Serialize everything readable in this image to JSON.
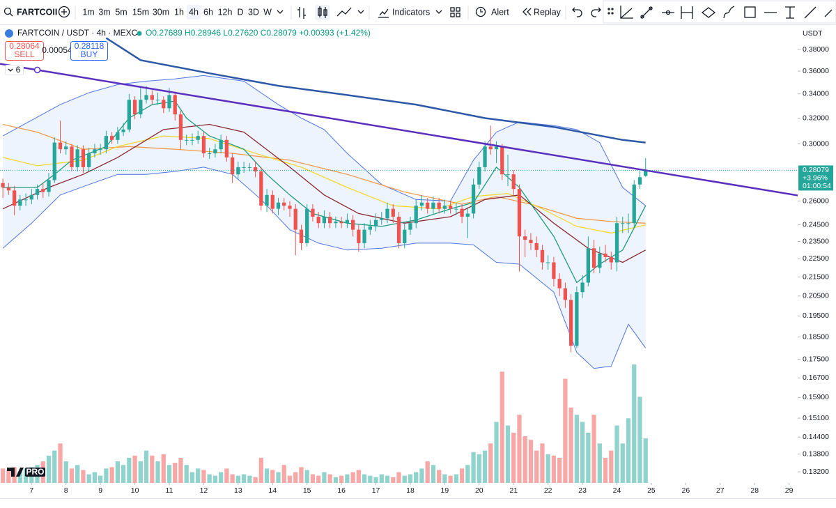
{
  "toolbar": {
    "symbol": "FARTCOII",
    "intervals": [
      "1m",
      "3m",
      "5m",
      "15m",
      "30m",
      "1h",
      "4h",
      "6h",
      "12h",
      "D",
      "3D",
      "W"
    ],
    "indicators": "Indicators",
    "alert": "Alert",
    "replay": "Replay"
  },
  "legend": {
    "pair": "FARTCOIN / USDT · 4h · MEXC",
    "ohlc": "O0.27689 H0.28946 L0.27620 C0.28079 +0.00393 (+1.42%)"
  },
  "trade": {
    "sell_price": "0.28064",
    "sell": "SELL",
    "spread": "0.00054",
    "buy_price": "0.28118",
    "buy": "BUY"
  },
  "indicator_count": "6",
  "currency": "USDT",
  "logo": "PRO",
  "last_price": {
    "price": "0.28079",
    "change": "+3.96%",
    "countdown": "01:00:54"
  },
  "chart_data": {
    "type": "candlestick",
    "log_scale": true,
    "grid": false,
    "up_color": "#26a69a",
    "down_color": "#ef5350",
    "volume_up_color": "#8fd3cc",
    "volume_down_color": "#f7a7a5",
    "xlim": [
      -0.5,
      138.5
    ],
    "xticks": [
      {
        "value": 5,
        "label": "7"
      },
      {
        "value": 11,
        "label": "8"
      },
      {
        "value": 17,
        "label": "9"
      },
      {
        "value": 23,
        "label": "10"
      },
      {
        "value": 29,
        "label": "11"
      },
      {
        "value": 35,
        "label": "12"
      },
      {
        "value": 41,
        "label": "13"
      },
      {
        "value": 47,
        "label": "14"
      },
      {
        "value": 53,
        "label": "15"
      },
      {
        "value": 59,
        "label": "16"
      },
      {
        "value": 65,
        "label": "17"
      },
      {
        "value": 71,
        "label": "18"
      },
      {
        "value": 77,
        "label": "19"
      },
      {
        "value": 83,
        "label": "20"
      },
      {
        "value": 89,
        "label": "21"
      },
      {
        "value": 95,
        "label": "22"
      },
      {
        "value": 101,
        "label": "23"
      },
      {
        "value": 107,
        "label": "24"
      },
      {
        "value": 113,
        "label": "25"
      },
      {
        "value": 119,
        "label": "26"
      },
      {
        "value": 125,
        "label": "27"
      },
      {
        "value": 131,
        "label": "28"
      },
      {
        "value": 137,
        "label": "29"
      }
    ],
    "ylim": [
      0.1284,
      0.4011
    ],
    "yticks": [
      {
        "value": 0.38,
        "label": "0.38000"
      },
      {
        "value": 0.36,
        "label": "0.36000"
      },
      {
        "value": 0.34,
        "label": "0.34000"
      },
      {
        "value": 0.32,
        "label": "0.32000"
      },
      {
        "value": 0.3,
        "label": "0.30000"
      },
      {
        "value": 0.26,
        "label": "0.26000"
      },
      {
        "value": 0.245,
        "label": "0.24500"
      },
      {
        "value": 0.235,
        "label": "0.23500"
      },
      {
        "value": 0.225,
        "label": "0.22500"
      },
      {
        "value": 0.215,
        "label": "0.21500"
      },
      {
        "value": 0.205,
        "label": "0.20500"
      },
      {
        "value": 0.195,
        "label": "0.19500"
      },
      {
        "value": 0.185,
        "label": "0.18500"
      },
      {
        "value": 0.175,
        "label": "0.17500"
      },
      {
        "value": 0.167,
        "label": "0.16700"
      },
      {
        "value": 0.159,
        "label": "0.15900"
      },
      {
        "value": 0.151,
        "label": "0.15100"
      },
      {
        "value": 0.144,
        "label": "0.14400"
      },
      {
        "value": 0.138,
        "label": "0.13800"
      },
      {
        "value": 0.132,
        "label": "0.13200"
      }
    ],
    "open": [
      0.272,
      0.269,
      0.267,
      0.257,
      0.261,
      0.261,
      0.264,
      0.268,
      0.266,
      0.274,
      0.301,
      0.296,
      0.298,
      0.283,
      0.296,
      0.283,
      0.293,
      0.296,
      0.296,
      0.306,
      0.303,
      0.309,
      0.311,
      0.335,
      0.323,
      0.335,
      0.339,
      0.335,
      0.335,
      0.328,
      0.339,
      0.323,
      0.303,
      0.303,
      0.303,
      0.306,
      0.293,
      0.293,
      0.296,
      0.303,
      0.29,
      0.278,
      0.283,
      0.283,
      0.283,
      0.28,
      0.257,
      0.264,
      0.255,
      0.259,
      0.257,
      0.255,
      0.242,
      0.234,
      0.255,
      0.25,
      0.246,
      0.25,
      0.246,
      0.247,
      0.246,
      0.248,
      0.242,
      0.234,
      0.242,
      0.244,
      0.248,
      0.249,
      0.255,
      0.25,
      0.234,
      0.242,
      0.246,
      0.257,
      0.259,
      0.255,
      0.259,
      0.255,
      0.257,
      0.255,
      0.255,
      0.25,
      0.252,
      0.271,
      0.283,
      0.298,
      0.296,
      0.298,
      0.278,
      0.278,
      0.268,
      0.238,
      0.236,
      0.234,
      0.23,
      0.223,
      0.223,
      0.214,
      0.209,
      0.203,
      0.181,
      0.207,
      0.212,
      0.231,
      0.22,
      0.228,
      0.226,
      0.223,
      0.246,
      0.246,
      0.246,
      0.271,
      0.27689
    ],
    "high": [
      0.275,
      0.272,
      0.27,
      0.264,
      0.265,
      0.268,
      0.271,
      0.272,
      0.279,
      0.305,
      0.318,
      0.302,
      0.3,
      0.299,
      0.299,
      0.297,
      0.3,
      0.3,
      0.31,
      0.309,
      0.313,
      0.316,
      0.34,
      0.338,
      0.345,
      0.347,
      0.343,
      0.341,
      0.338,
      0.345,
      0.342,
      0.326,
      0.307,
      0.308,
      0.31,
      0.309,
      0.297,
      0.3,
      0.307,
      0.306,
      0.293,
      0.287,
      0.287,
      0.286,
      0.287,
      0.283,
      0.268,
      0.267,
      0.262,
      0.262,
      0.26,
      0.258,
      0.245,
      0.258,
      0.258,
      0.253,
      0.254,
      0.253,
      0.25,
      0.25,
      0.252,
      0.251,
      0.245,
      0.246,
      0.248,
      0.252,
      0.253,
      0.259,
      0.258,
      0.253,
      0.246,
      0.25,
      0.261,
      0.264,
      0.262,
      0.263,
      0.262,
      0.261,
      0.26,
      0.259,
      0.258,
      0.256,
      0.275,
      0.287,
      0.302,
      0.314,
      0.302,
      0.3,
      0.292,
      0.281,
      0.271,
      0.242,
      0.24,
      0.238,
      0.233,
      0.227,
      0.226,
      0.217,
      0.212,
      0.206,
      0.21,
      0.216,
      0.238,
      0.236,
      0.232,
      0.233,
      0.229,
      0.25,
      0.25,
      0.252,
      0.274,
      0.281,
      0.28946
    ],
    "low": [
      0.262,
      0.264,
      0.251,
      0.254,
      0.257,
      0.258,
      0.261,
      0.262,
      0.263,
      0.272,
      0.293,
      0.292,
      0.28,
      0.28,
      0.279,
      0.28,
      0.29,
      0.292,
      0.293,
      0.3,
      0.3,
      0.306,
      0.309,
      0.319,
      0.32,
      0.332,
      0.331,
      0.331,
      0.324,
      0.325,
      0.318,
      0.296,
      0.299,
      0.299,
      0.3,
      0.29,
      0.289,
      0.29,
      0.293,
      0.287,
      0.272,
      0.275,
      0.279,
      0.28,
      0.276,
      0.254,
      0.253,
      0.252,
      0.251,
      0.254,
      0.25,
      0.227,
      0.23,
      0.232,
      0.247,
      0.243,
      0.243,
      0.243,
      0.243,
      0.243,
      0.243,
      0.238,
      0.229,
      0.231,
      0.239,
      0.241,
      0.245,
      0.246,
      0.246,
      0.231,
      0.231,
      0.239,
      0.243,
      0.254,
      0.252,
      0.252,
      0.252,
      0.252,
      0.252,
      0.251,
      0.246,
      0.237,
      0.249,
      0.268,
      0.28,
      0.292,
      0.286,
      0.274,
      0.27,
      0.264,
      0.218,
      0.226,
      0.23,
      0.226,
      0.219,
      0.219,
      0.21,
      0.205,
      0.199,
      0.178,
      0.18,
      0.204,
      0.21,
      0.217,
      0.217,
      0.223,
      0.219,
      0.218,
      0.24,
      0.24,
      0.243,
      0.268,
      0.2762
    ],
    "close": [
      0.269,
      0.267,
      0.257,
      0.261,
      0.261,
      0.264,
      0.268,
      0.266,
      0.274,
      0.301,
      0.296,
      0.298,
      0.283,
      0.296,
      0.283,
      0.293,
      0.296,
      0.296,
      0.306,
      0.303,
      0.309,
      0.311,
      0.335,
      0.323,
      0.335,
      0.339,
      0.335,
      0.335,
      0.328,
      0.339,
      0.323,
      0.303,
      0.303,
      0.303,
      0.306,
      0.293,
      0.293,
      0.296,
      0.303,
      0.29,
      0.278,
      0.283,
      0.283,
      0.283,
      0.28,
      0.257,
      0.264,
      0.255,
      0.259,
      0.257,
      0.255,
      0.242,
      0.234,
      0.255,
      0.25,
      0.246,
      0.25,
      0.246,
      0.247,
      0.246,
      0.248,
      0.242,
      0.234,
      0.242,
      0.244,
      0.248,
      0.249,
      0.255,
      0.25,
      0.234,
      0.242,
      0.246,
      0.257,
      0.259,
      0.255,
      0.259,
      0.255,
      0.257,
      0.255,
      0.255,
      0.25,
      0.252,
      0.271,
      0.283,
      0.298,
      0.296,
      0.298,
      0.278,
      0.278,
      0.268,
      0.238,
      0.236,
      0.234,
      0.23,
      0.223,
      0.223,
      0.214,
      0.209,
      0.203,
      0.181,
      0.207,
      0.212,
      0.231,
      0.22,
      0.228,
      0.226,
      0.223,
      0.246,
      0.246,
      0.246,
      0.271,
      0.276,
      0.28079
    ],
    "volume": [
      20,
      18,
      22,
      15,
      20,
      22,
      25,
      30,
      38,
      45,
      55,
      30,
      20,
      25,
      18,
      12,
      15,
      10,
      20,
      22,
      30,
      25,
      35,
      38,
      30,
      45,
      38,
      30,
      40,
      25,
      28,
      35,
      25,
      15,
      20,
      18,
      12,
      10,
      15,
      20,
      12,
      10,
      12,
      10,
      8,
      35,
      20,
      18,
      15,
      25,
      10,
      15,
      22,
      18,
      12,
      10,
      15,
      12,
      8,
      10,
      12,
      15,
      18,
      12,
      10,
      8,
      12,
      10,
      8,
      15,
      10,
      12,
      15,
      20,
      30,
      25,
      18,
      12,
      10,
      12,
      20,
      25,
      43,
      40,
      45,
      55,
      85,
      155,
      80,
      70,
      95,
      65,
      60,
      45,
      55,
      40,
      38,
      35,
      145,
      105,
      95,
      85,
      70,
      95,
      55,
      35,
      45,
      80,
      55,
      90,
      165,
      120,
      62
    ],
    "bollinger": {
      "color": "#4f74e3",
      "fill": "#edf4fd",
      "upper": {
        "x": [
          0,
          10,
          15,
          20,
          25,
          30,
          35,
          42,
          48,
          52,
          56,
          60,
          66,
          72,
          78,
          82,
          86,
          90,
          96,
          100,
          104,
          108,
          112
        ],
        "values": [
          0.306,
          0.331,
          0.341,
          0.348,
          0.351,
          0.353,
          0.356,
          0.351,
          0.331,
          0.32,
          0.311,
          0.293,
          0.271,
          0.261,
          0.26,
          0.288,
          0.309,
          0.317,
          0.314,
          0.311,
          0.301,
          0.269,
          0.257
        ]
      },
      "lower": {
        "x": [
          0,
          5,
          10,
          15,
          20,
          25,
          30,
          35,
          40,
          45,
          50,
          55,
          60,
          66,
          72,
          78,
          82,
          86,
          90,
          96,
          100,
          103,
          106,
          109,
          112
        ],
        "values": [
          0.231,
          0.246,
          0.264,
          0.271,
          0.278,
          0.278,
          0.28,
          0.283,
          0.278,
          0.261,
          0.242,
          0.234,
          0.23,
          0.231,
          0.234,
          0.234,
          0.233,
          0.223,
          0.222,
          0.207,
          0.178,
          0.171,
          0.172,
          0.191,
          0.18
        ]
      }
    },
    "overlays": [
      {
        "color": "#f29b4c",
        "x": [
          0,
          6,
          14,
          22,
          30,
          40,
          50,
          60,
          70,
          80,
          86,
          92,
          100,
          106,
          112
        ],
        "values": [
          0.315,
          0.309,
          0.296,
          0.298,
          0.296,
          0.293,
          0.288,
          0.278,
          0.266,
          0.258,
          0.263,
          0.258,
          0.249,
          0.247,
          0.246
        ]
      },
      {
        "color": "#f4d72c",
        "x": [
          0,
          6,
          14,
          20,
          28,
          36,
          44,
          52,
          60,
          68,
          76,
          82,
          88,
          94,
          100,
          106,
          112
        ],
        "values": [
          0.29,
          0.284,
          0.288,
          0.298,
          0.306,
          0.304,
          0.293,
          0.283,
          0.269,
          0.257,
          0.255,
          0.263,
          0.265,
          0.255,
          0.244,
          0.24,
          0.245
        ]
      },
      {
        "color": "#8c2b30",
        "x": [
          0,
          8,
          14,
          20,
          28,
          36,
          42,
          50,
          56,
          62,
          70,
          78,
          84,
          90,
          96,
          102,
          108,
          112
        ],
        "values": [
          0.255,
          0.269,
          0.278,
          0.29,
          0.311,
          0.315,
          0.309,
          0.283,
          0.264,
          0.252,
          0.246,
          0.25,
          0.261,
          0.264,
          0.246,
          0.231,
          0.223,
          0.23
        ]
      },
      {
        "color": "#1f9a7c",
        "x": [
          0,
          6,
          9,
          12,
          18,
          22,
          26,
          30,
          32,
          36,
          42,
          46,
          50,
          54,
          60,
          66,
          72,
          78,
          82,
          86,
          90,
          96,
          100,
          104,
          108,
          112
        ],
        "values": [
          0.269,
          0.269,
          0.278,
          0.288,
          0.298,
          0.32,
          0.331,
          0.334,
          0.32,
          0.306,
          0.296,
          0.278,
          0.264,
          0.252,
          0.246,
          0.244,
          0.248,
          0.255,
          0.259,
          0.283,
          0.269,
          0.238,
          0.212,
          0.222,
          0.23,
          0.257
        ]
      },
      {
        "color": "#2c58a8",
        "x": [
          18,
          24,
          36,
          48,
          60,
          72,
          84,
          96,
          108,
          112
        ],
        "values": [
          0.391,
          0.37,
          0.358,
          0.347,
          0.339,
          0.331,
          0.32,
          0.313,
          0.303,
          0.301
        ]
      }
    ],
    "trendline": {
      "color": "#5a2fbf",
      "x": [
        6,
        138
      ],
      "values": [
        0.361,
        0.264
      ]
    }
  }
}
